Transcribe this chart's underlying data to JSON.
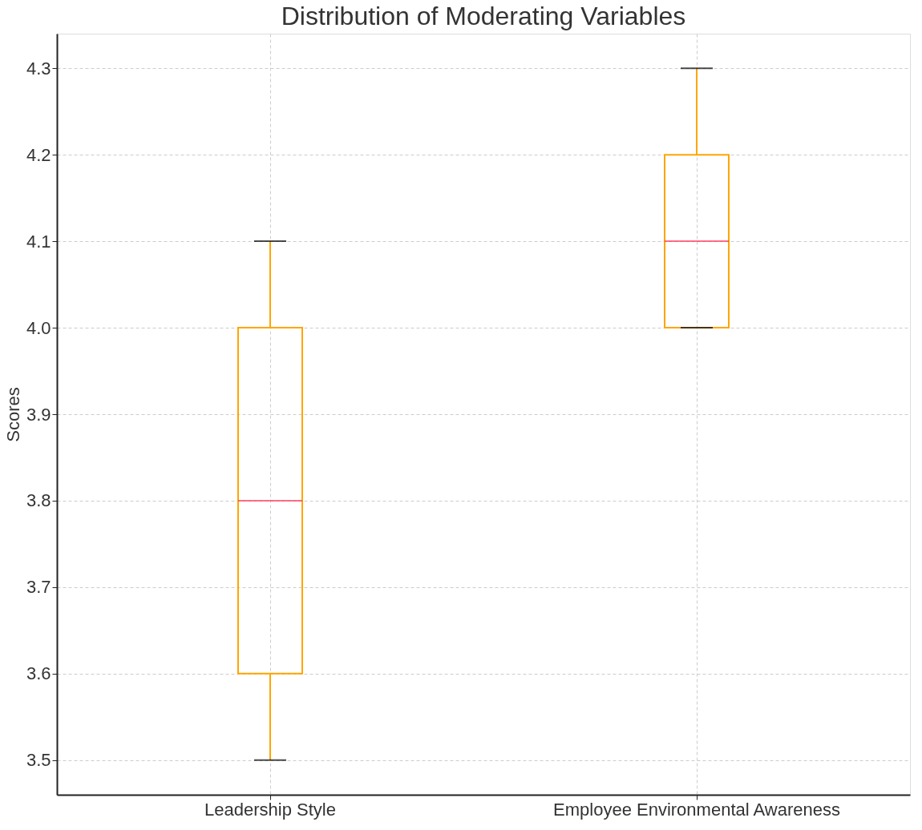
{
  "chart_data": {
    "type": "box",
    "title": "Distribution of Moderating Variables",
    "ylabel": "Scores",
    "categories": [
      "Leadership Style",
      "Employee Environmental Awareness"
    ],
    "boxes": [
      {
        "low": 3.5,
        "q1": 3.6,
        "median": 3.8,
        "q3": 4.0,
        "high": 4.1
      },
      {
        "low": 4.0,
        "q1": 4.0,
        "median": 4.1,
        "q3": 4.2,
        "high": 4.3
      }
    ],
    "ylim": [
      3.46,
      4.34
    ],
    "yticks": [
      3.5,
      3.6,
      3.7,
      3.8,
      3.9,
      {
        "value": 4.0,
        "label": "4.0"
      },
      4.1,
      4.2,
      4.3
    ],
    "grid": true
  }
}
